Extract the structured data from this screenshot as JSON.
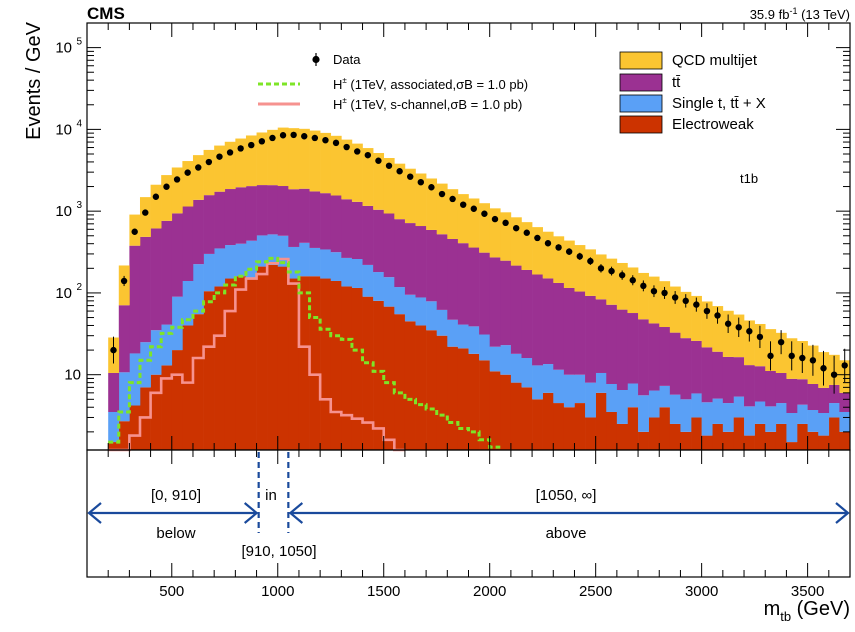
{
  "header": {
    "experiment": "CMS",
    "lumi_prefix": "35.9 fb",
    "lumi_exp": "-1",
    "lumi_suffix": "(13 TeV)"
  },
  "category_label": "t1b",
  "colors": {
    "qcd": "#fbc531",
    "ttbar": "#9b3192",
    "single_t": "#5aa0f6",
    "electroweak": "#cc3300",
    "data": "#000000",
    "signal_associated": "#7ee527",
    "signal_schannel": "#f6928f",
    "region_arrows": "#1a4a9c"
  },
  "legend": {
    "left": [
      {
        "key": "data",
        "label": "Data"
      },
      {
        "key": "signal_associated",
        "prefix": "H",
        "rest": " (1TeV, associated,σB = 1.0 pb)"
      },
      {
        "key": "signal_schannel",
        "prefix": "H",
        "rest": " (1TeV, s-channel,σB = 1.0 pb)"
      }
    ],
    "right": [
      {
        "key": "qcd",
        "label": "QCD multijet"
      },
      {
        "key": "ttbar",
        "label": "tt̄"
      },
      {
        "key": "single_t",
        "label": "Single t, tt̄ + X"
      },
      {
        "key": "electroweak",
        "label": "Electroweak"
      }
    ]
  },
  "regions": {
    "below": {
      "range": "[0, 910]",
      "name": "below"
    },
    "in": {
      "range": "[910, 1050]",
      "name": "in"
    },
    "above": {
      "range": "[1050, ∞]",
      "name": "above"
    },
    "boundaries": [
      910,
      1050
    ]
  },
  "chart_data": {
    "type": "bar",
    "stacked": true,
    "log_y": true,
    "xlabel": "m_tb (GeV)",
    "ylabel": "Events / GeV",
    "xlim": [
      100,
      3700
    ],
    "ylim": [
      1.2,
      200000
    ],
    "x_ticks": [
      500,
      1000,
      1500,
      2000,
      2500,
      3000,
      3500
    ],
    "y_ticks": [
      {
        "v": 10,
        "label": "10"
      },
      {
        "v": 100,
        "label": "10",
        "exp": "2"
      },
      {
        "v": 1000,
        "label": "10",
        "exp": "3"
      },
      {
        "v": 10000,
        "label": "10",
        "exp": "4"
      },
      {
        "v": 100000,
        "label": "10",
        "exp": "5"
      }
    ],
    "bin_width": 50,
    "x_bin_low_edges": [
      200,
      250,
      300,
      350,
      400,
      450,
      500,
      550,
      600,
      650,
      700,
      750,
      800,
      850,
      900,
      950,
      1000,
      1050,
      1100,
      1150,
      1200,
      1250,
      1300,
      1350,
      1400,
      1450,
      1500,
      1550,
      1600,
      1650,
      1700,
      1750,
      1800,
      1850,
      1900,
      1950,
      2000,
      2050,
      2100,
      2150,
      2200,
      2250,
      2300,
      2350,
      2400,
      2450,
      2500,
      2550,
      2600,
      2650,
      2700,
      2750,
      2800,
      2850,
      2900,
      2950,
      3000,
      3050,
      3100,
      3150,
      3200,
      3250,
      3300,
      3350,
      3400,
      3450,
      3500,
      3550,
      3600,
      3650
    ],
    "series": [
      {
        "name": "QCD multijet",
        "key": "qcd",
        "values": [
          18,
          146,
          530,
          1000,
          1490,
          2000,
          2480,
          2960,
          3470,
          4040,
          4610,
          5190,
          5770,
          6400,
          7080,
          7790,
          8490,
          8500,
          8280,
          7930,
          7400,
          6790,
          6100,
          5400,
          4750,
          4100,
          3530,
          3010,
          2590,
          2230,
          1920,
          1650,
          1400,
          1210,
          1070,
          940,
          810,
          720,
          625,
          543,
          470,
          410,
          360,
          322,
          281,
          249,
          212,
          191,
          170,
          148,
          128,
          116,
          101,
          87,
          75,
          66,
          57,
          50,
          44,
          38,
          33,
          29,
          25,
          22,
          19,
          17,
          15,
          12,
          10,
          9
        ]
      },
      {
        "name": "tt̄",
        "key": "ttbar",
        "values": [
          7,
          60,
          360,
          460,
          580,
          720,
          850,
          1000,
          1150,
          1270,
          1380,
          1480,
          1560,
          1590,
          1580,
          1560,
          1530,
          1490,
          1470,
          1390,
          1320,
          1240,
          1130,
          1040,
          940,
          860,
          780,
          680,
          620,
          570,
          510,
          460,
          410,
          365,
          320,
          280,
          250,
          225,
          198,
          175,
          155,
          137,
          121,
          105,
          94,
          84,
          73,
          64,
          56,
          49,
          42,
          36,
          31,
          27,
          23,
          20,
          17,
          14,
          12,
          11,
          9,
          8,
          7,
          6,
          5.5,
          4.5,
          4,
          3.5,
          3,
          2.5
        ]
      },
      {
        "name": "Single t, tt̄ + X",
        "key": "single_t",
        "values": [
          2,
          8,
          14,
          18,
          25,
          28,
          70,
          100,
          170,
          195,
          230,
          235,
          240,
          280,
          295,
          300,
          290,
          215,
          250,
          195,
          190,
          175,
          148,
          145,
          130,
          100,
          88,
          63,
          50,
          48,
          44,
          32,
          25,
          20,
          21,
          16,
          11,
          13,
          10,
          9,
          8,
          7.5,
          7,
          6,
          5.5,
          5,
          4.5,
          4.2,
          4,
          3.8,
          3.6,
          3.4,
          3.3,
          3.2,
          3,
          2.9,
          2.8,
          2.6,
          2.5,
          2.4,
          2.3,
          2.2,
          2.1,
          2,
          1.9,
          1.8,
          1.7,
          1.6,
          1.5,
          1.5
        ]
      },
      {
        "name": "Electroweak",
        "key": "electroweak",
        "values": [
          1.5,
          2.7,
          4.2,
          7,
          10,
          13,
          20,
          40,
          55,
          105,
          120,
          150,
          160,
          155,
          210,
          220,
          210,
          150,
          160,
          160,
          150,
          140,
          120,
          115,
          90,
          80,
          68,
          55,
          45,
          40,
          35,
          30,
          22,
          21,
          18,
          15,
          11,
          10,
          8,
          7,
          5,
          6,
          4.5,
          4,
          4.5,
          3,
          6,
          3.5,
          2.5,
          4,
          2,
          3,
          4,
          2.5,
          2,
          3,
          1.8,
          2.5,
          2,
          3,
          1.8,
          2.5,
          2,
          2.5,
          1.5,
          2.5,
          2,
          1.8,
          3,
          2
        ]
      },
      {
        "name": "Data",
        "key": "data",
        "type": "points",
        "values": [
          20,
          140,
          560,
          960,
          1500,
          1990,
          2440,
          2960,
          3420,
          3990,
          4640,
          5220,
          5850,
          6430,
          7150,
          7850,
          8480,
          8560,
          8240,
          7850,
          7380,
          6840,
          6080,
          5370,
          4840,
          4140,
          3590,
          3080,
          2640,
          2260,
          1960,
          1620,
          1410,
          1200,
          1070,
          930,
          800,
          720,
          620,
          545,
          470,
          405,
          360,
          320,
          280,
          245,
          200,
          185,
          165,
          143,
          122,
          105,
          100,
          88,
          80,
          72,
          60,
          53,
          42,
          38,
          34,
          29,
          17,
          25,
          17,
          16,
          15,
          12,
          10,
          13
        ]
      },
      {
        "name": "H± (1TeV, associated,σB = 1.0 pb)",
        "key": "signal_associated",
        "type": "step",
        "values": [
          1.5,
          3.5,
          8,
          15,
          22,
          32,
          38,
          47,
          60,
          78,
          100,
          125,
          160,
          195,
          240,
          265,
          235,
          180,
          100,
          50,
          36,
          30,
          27,
          20,
          14,
          11,
          8,
          6,
          5,
          4.3,
          3.8,
          3.2,
          2.6,
          2.2,
          2.0,
          1.6,
          1.3
        ]
      },
      {
        "name": "H± (1TeV, s-channel,σB = 1.0 pb)",
        "key": "signal_schannel",
        "type": "step",
        "values": [
          0.7,
          1.2,
          1.8,
          3.0,
          6,
          9,
          10,
          8,
          16,
          22,
          30,
          60,
          110,
          150,
          170,
          230,
          260,
          130,
          22,
          10,
          5,
          3.5,
          3.2,
          2.9,
          2.6,
          2.2,
          1.6,
          1.1
        ]
      }
    ]
  }
}
